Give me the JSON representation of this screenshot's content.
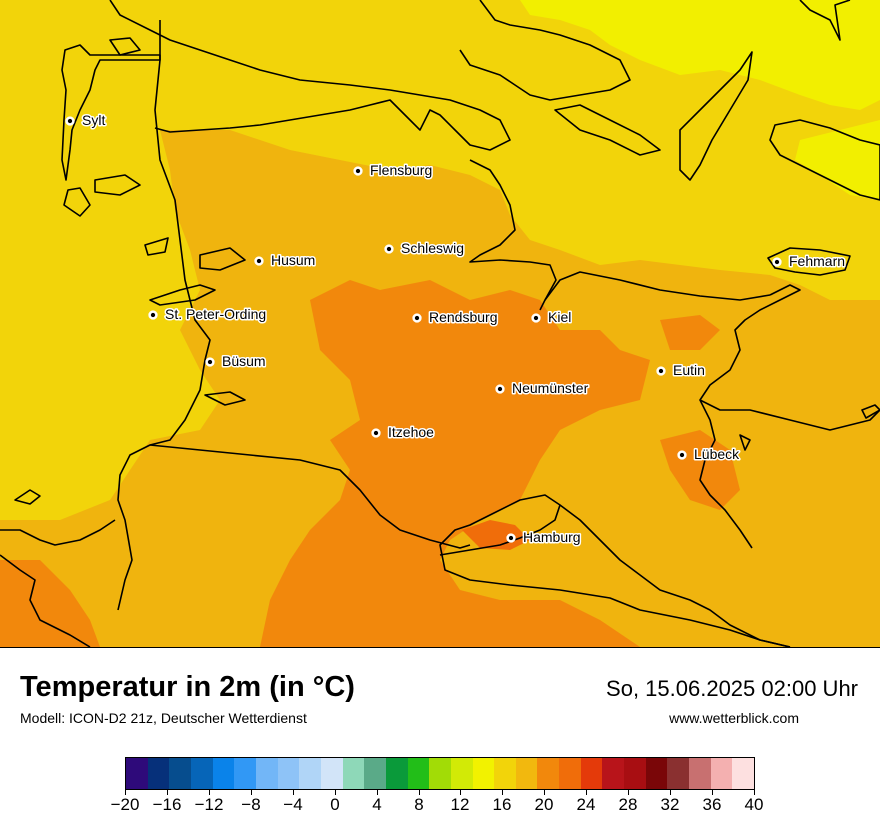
{
  "map": {
    "colors": {
      "sea": "#f2d40a",
      "land": "#f0b40e",
      "warm": "#f2880c",
      "hot": "#f06d0a",
      "cool": "#f2ef00"
    },
    "cities": [
      {
        "name": "Sylt"
      },
      {
        "name": "Flensburg"
      },
      {
        "name": "Schleswig"
      },
      {
        "name": "Husum"
      },
      {
        "name": "St. Peter-Ording"
      },
      {
        "name": "Rendsburg"
      },
      {
        "name": "Kiel"
      },
      {
        "name": "Büsum"
      },
      {
        "name": "Fehmarn"
      },
      {
        "name": "Neumünster"
      },
      {
        "name": "Eutin"
      },
      {
        "name": "Itzehoe"
      },
      {
        "name": "Lübeck"
      },
      {
        "name": "Hamburg"
      }
    ]
  },
  "header": {
    "title": "Temperatur in 2m (in °C)",
    "model": "Modell: ICON-D2 21z, Deutscher Wetterdienst",
    "datetime": "So, 15.06.2025 02:00 Uhr",
    "website": "www.wetterblick.com"
  },
  "legend": {
    "colors": [
      "#2e0a7a",
      "#06307a",
      "#064d8e",
      "#0665b8",
      "#0a83ea",
      "#3198f5",
      "#72b6f7",
      "#8ec3f7",
      "#b0d5f7",
      "#d2e4f8",
      "#8ed8b8",
      "#5aaa88",
      "#0a9a3a",
      "#22be18",
      "#a2dc06",
      "#d2ea06",
      "#f2f200",
      "#f2d40a",
      "#f2b80e",
      "#f2880c",
      "#f06d0a",
      "#e43a0a",
      "#b8141a",
      "#a80e12",
      "#7a0608",
      "#8a3030",
      "#c87070",
      "#f4b0b0",
      "#fde0e0"
    ],
    "ticks": [
      "−20",
      "−16",
      "−12",
      "−8",
      "−4",
      "0",
      "4",
      "8",
      "12",
      "16",
      "20",
      "24",
      "28",
      "32",
      "36",
      "40"
    ],
    "min": -20,
    "max": 40
  }
}
